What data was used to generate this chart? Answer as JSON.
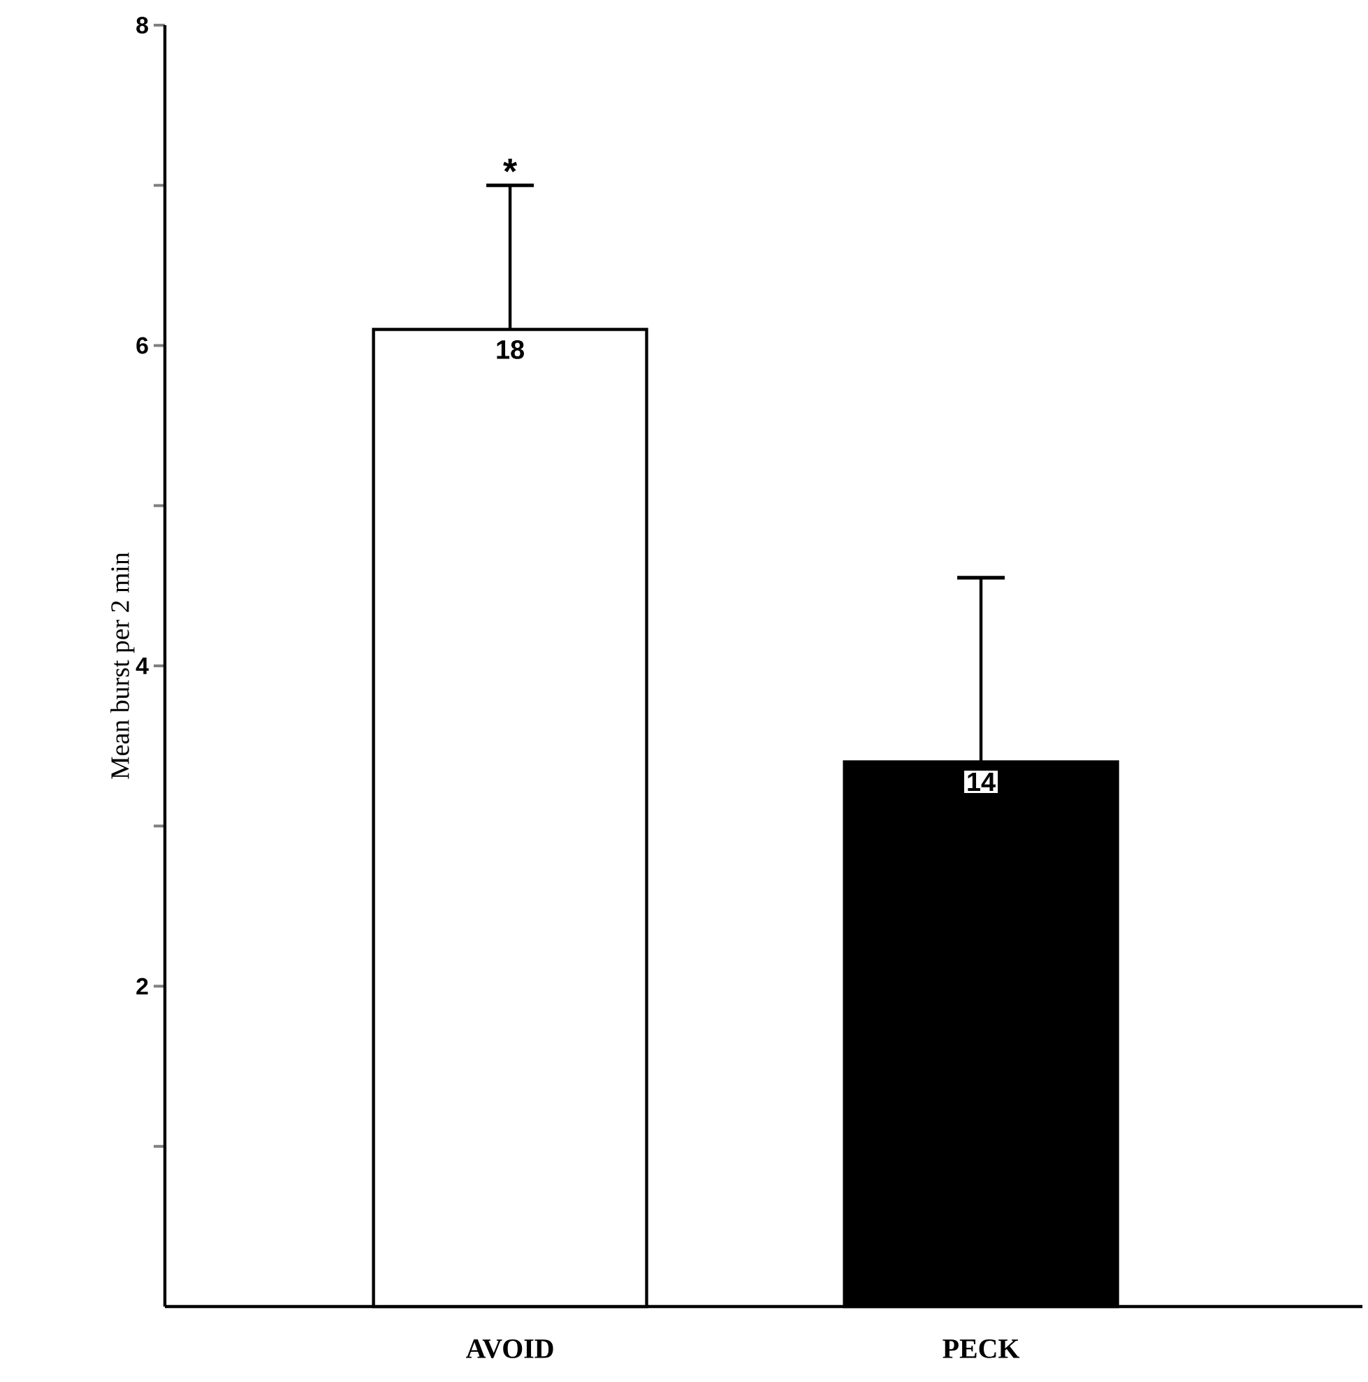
{
  "chart_data": {
    "type": "bar",
    "ylabel": "Mean burst per 2 min",
    "categories": [
      "AVOID",
      "PECK"
    ],
    "values": [
      6.1,
      3.4
    ],
    "colors": [
      "#ffffff",
      "#000000"
    ],
    "errors": [
      [
        6.1,
        7.0
      ],
      [
        3.4,
        4.55
      ]
    ],
    "ylim": [
      0,
      8
    ],
    "yticks": [
      {
        "value": 1,
        "label": null
      },
      2,
      {
        "value": 3,
        "label": null
      },
      4,
      {
        "value": 5,
        "label": null
      },
      6,
      {
        "value": 7,
        "label": null
      },
      8
    ],
    "annotations": [
      {
        "text": "18",
        "x": "AVOID",
        "y": 6.1
      },
      {
        "text": "14",
        "x": "PECK",
        "y": 3.4
      },
      "*"
    ],
    "grid": false
  }
}
